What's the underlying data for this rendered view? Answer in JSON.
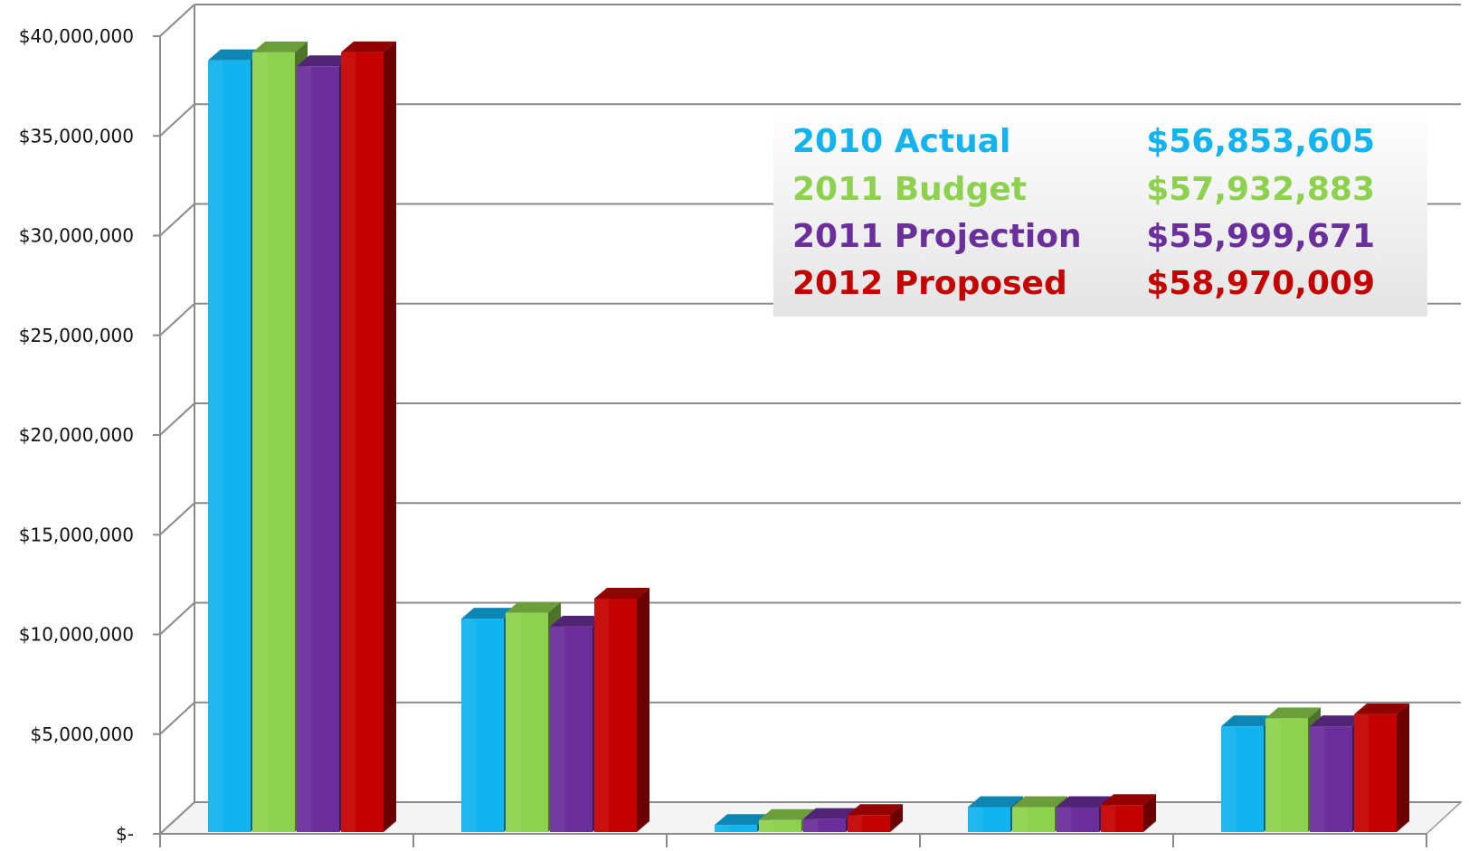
{
  "chart_data": {
    "type": "bar",
    "style": "3d-clustered-column",
    "categories": [
      "",
      "",
      "",
      "",
      ""
    ],
    "series": [
      {
        "name": "2010 Actual",
        "total": "$56,853,605",
        "color": "#12b3ee",
        "values": [
          38700000,
          10700000,
          350000,
          1250000,
          5300000
        ]
      },
      {
        "name": "2011 Budget",
        "total": "$57,932,883",
        "color": "#8ed14e",
        "values": [
          39100000,
          11000000,
          600000,
          1250000,
          5700000
        ]
      },
      {
        "name": "2011 Projection",
        "total": "$55,999,671",
        "color": "#6a2f9a",
        "values": [
          38400000,
          10300000,
          650000,
          1250000,
          5300000
        ]
      },
      {
        "name": "2012 Proposed",
        "total": "$58,970,009",
        "color": "#c40000",
        "values": [
          39100000,
          11700000,
          850000,
          1350000,
          5900000
        ]
      }
    ],
    "ylim": [
      0,
      40000000
    ],
    "yticks": [
      0,
      5000000,
      10000000,
      15000000,
      20000000,
      25000000,
      30000000,
      35000000,
      40000000
    ],
    "ytick_labels": [
      "$-",
      "$5,000,000",
      "$10,000,000",
      "$15,000,000",
      "$20,000,000",
      "$25,000,000",
      "$30,000,000",
      "$35,000,000",
      "$40,000,000"
    ],
    "grid": true,
    "legend": "upper-right inside plot, with series totals",
    "title": "",
    "xlabel": "",
    "ylabel": ""
  }
}
